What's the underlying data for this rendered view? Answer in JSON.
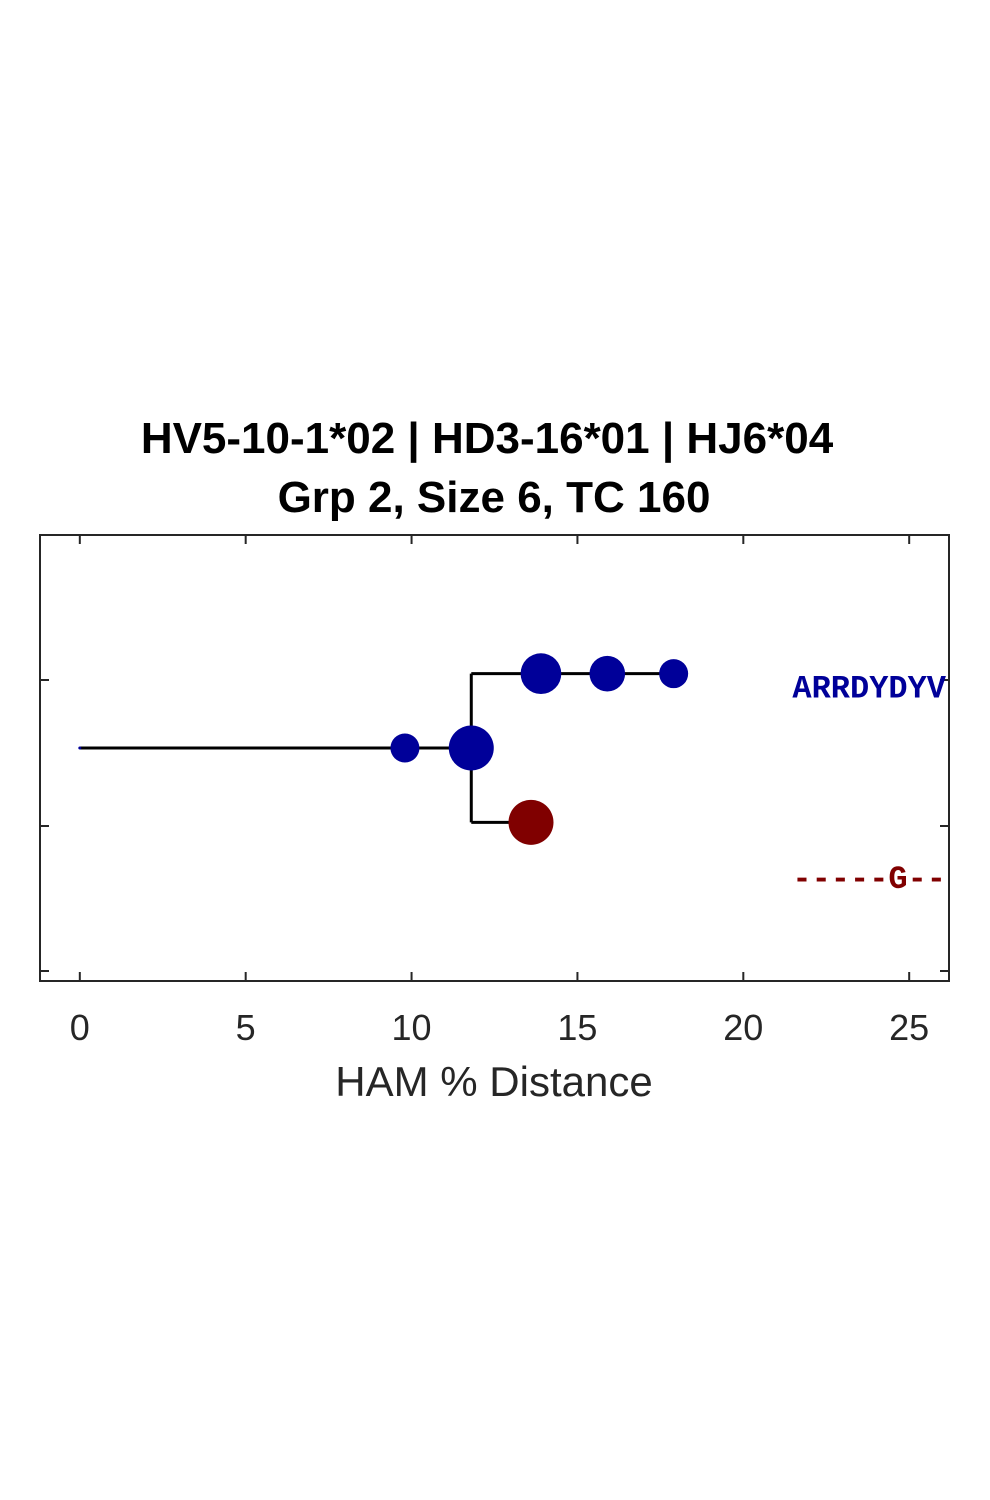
{
  "chart_data": {
    "type": "scatter",
    "title": [
      "HV5-10-1*02 | HD3-16*01 | HJ6*04",
      "Grp 2, Size 6, TC 160"
    ],
    "xlabel": "HAM % Distance",
    "ylabel": "",
    "xlim": [
      -1.2,
      26.2
    ],
    "ylim": [
      0,
      3
    ],
    "xticks": [
      "0",
      "5",
      "10",
      "15",
      "20",
      "25"
    ],
    "xtick_values": [
      0,
      5,
      10,
      15,
      20,
      25
    ],
    "ytick_values": [
      0,
      1,
      2,
      3
    ],
    "colors": {
      "blue": "#000099",
      "red": "#800000",
      "line": "#000000",
      "axis": "#262626"
    },
    "nodes": [
      {
        "x": 0,
        "y": 1.5,
        "size": 0.2,
        "color": "#000099"
      },
      {
        "x": 9.8,
        "y": 1.5,
        "size": 1,
        "color": "#000099"
      },
      {
        "x": 11.8,
        "y": 1.5,
        "size": 4,
        "color": "#000099"
      },
      {
        "x": 13.9,
        "y": 2,
        "size": 3,
        "color": "#000099"
      },
      {
        "x": 15.9,
        "y": 2,
        "size": 2,
        "color": "#000099"
      },
      {
        "x": 17.9,
        "y": 2,
        "size": 1,
        "color": "#000099"
      },
      {
        "x": 13.6,
        "y": 1,
        "size": 4,
        "color": "#800000"
      }
    ],
    "edges": [
      [
        [
          0,
          1.5
        ],
        [
          11.8,
          1.5
        ]
      ],
      [
        [
          11.8,
          1.5
        ],
        [
          11.8,
          2
        ]
      ],
      [
        [
          11.8,
          2
        ],
        [
          17.9,
          2
        ]
      ],
      [
        [
          11.8,
          1.5
        ],
        [
          11.8,
          1
        ]
      ],
      [
        [
          11.8,
          1
        ],
        [
          13.6,
          1
        ]
      ]
    ],
    "sequences": [
      {
        "text": "ARRDYDYV",
        "y": 1.92,
        "color": "#000099"
      },
      {
        "text": "-----G--",
        "y": 0.64,
        "color": "#800000"
      }
    ]
  }
}
